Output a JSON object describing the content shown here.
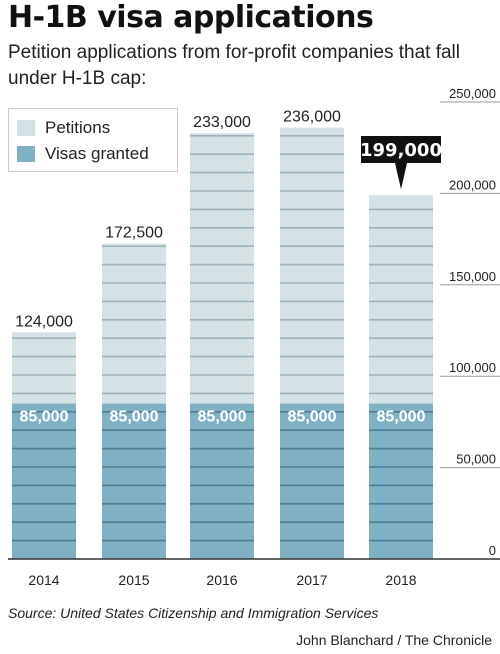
{
  "title": "H-1B visa applications",
  "subtitle": "Petition applications from for-profit companies that fall under H-1B cap:",
  "legend": [
    {
      "label": "Petitions",
      "color": "#d4e2e6"
    },
    {
      "label": "Visas granted",
      "color": "#7fb0c3"
    }
  ],
  "source": "Source: United States Citizenship and Immigration Services",
  "credit": "John Blanchard / The Chronicle",
  "chart_data": {
    "type": "bar",
    "categories": [
      "2014",
      "2015",
      "2016",
      "2017",
      "2018"
    ],
    "series": [
      {
        "name": "Petitions",
        "values": [
          124000,
          172500,
          233000,
          236000,
          199000
        ],
        "labels": [
          "124,000",
          "172,500",
          "233,000",
          "236,000",
          "199,000"
        ],
        "color": "#d4e2e6"
      },
      {
        "name": "Visas granted",
        "values": [
          85000,
          85000,
          85000,
          85000,
          85000
        ],
        "labels": [
          "85,000",
          "85,000",
          "85,000",
          "85,000",
          "85,000"
        ],
        "color": "#7fb0c3"
      }
    ],
    "highlight": {
      "category": "2018",
      "label": "199,000"
    },
    "yticks": [
      0,
      50000,
      100000,
      150000,
      200000,
      250000
    ],
    "ytick_labels": [
      "0",
      "50,000",
      "100,000",
      "150,000",
      "200,000",
      "250,000"
    ],
    "ylim": [
      0,
      250000
    ],
    "grid": true,
    "axis_side": "right",
    "legend_position": "top-left"
  }
}
